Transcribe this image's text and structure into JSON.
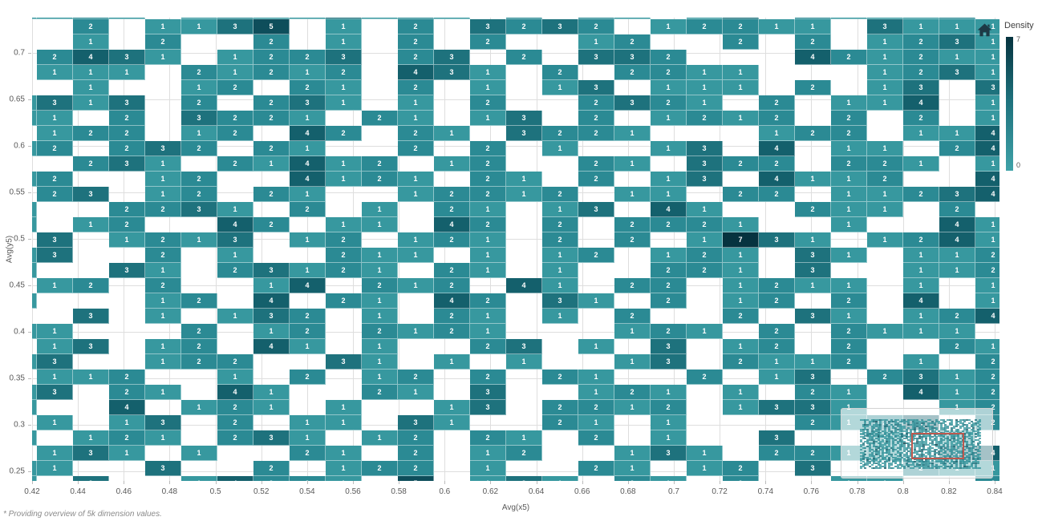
{
  "chart_data": {
    "type": "heatmap",
    "title": "",
    "xlabel": "Avg(x5)",
    "ylabel": "Avg(y5)",
    "x_range": [
      0.42,
      0.84
    ],
    "y_range": [
      0.25,
      0.7
    ],
    "x_ticks": [
      "0.42",
      "0.44",
      "0.46",
      "0.48",
      "0.5",
      "0.52",
      "0.54",
      "0.56",
      "0.58",
      "0.6",
      "0.62",
      "0.64",
      "0.66",
      "0.68",
      "0.7",
      "0.72",
      "0.74",
      "0.76",
      "0.78",
      "0.8",
      "0.82",
      "0.84"
    ],
    "y_ticks": [
      "0.7",
      "0.65",
      "0.6",
      "0.55",
      "0.5",
      "0.45",
      "0.4",
      "0.35",
      "0.3",
      "0.25"
    ],
    "density_scale": {
      "min": 0,
      "max": 7
    },
    "grid_encoding": "Each string is one row of cells (top to bottom, edge rows/columns clipped in view); '.'=empty white cell, digits 1-7 = density value displayed in the cell",
    "cols": 28,
    "rows": [
      "1121.12113121.2.21.13.21112.",
      "..2.1135.1.2.3232.12211.3111",
      "..1.2..2.1.2.2..12..2.2.1231",
      ".2431.1223.23.2.332...421211",
      ".111.21212.431.2.2211...1231",
      "..1..12.21.2.1.13.111.2.13.3",
      "1313.2.231.1.2..2321.2.114.1",
      "11.2.3221.21.13.2.1212.2.2.1",
      ".122.12.42.21.3221...122.114",
      "12.232.21..2.2.1..13.4.11.24",
      "..231.21412.12..21.322.221.1",
      "12..12..4121.21.2.13.4112..4",
      ".23.12.21..12212.11.22.11234",
      "1..2231.2.1.21.13.41..211.2.",
      "1.12..42.11.42.2.2221..1..41",
      ".3.1213.12.121.2.2.1731.1241",
      "13..2.1..211.1.12.121.31.112",
      "1..31.23121.21.1..221.3..112",
      ".12.2..14.212.41.22.1211.1.1",
      "1...12.4.21.42.31.2.12.2.4.1",
      "..3.1.132.1.21.1.2..2.31.124",
      "11...2.12.2121...121.2.2111.",
      ".13.12.41.1..23.1.3.12.2..21",
      "13..122..31.1.1..13.2112.1.2",
      ".112..1.2.12.2.21..2.13.2312",
      "13.21.41..21.3..121.1.21.412",
      "1..4.121.1..13.2212.1331..12",
      ".1.13.2.11.31..21.1...2124.2",
      "1.121.231.12.21.2.1..3..1.1.",
      ".131.1..21.2.12..131.2211.34",
      "11..3..2.122.1..21.12.3..211",
      "1.3..14221.5.131.21.2..11..2"
    ]
  },
  "legend": {
    "title": "Density",
    "max_label": "7",
    "min_label": "0"
  },
  "footnote": "* Providing overview of 5k dimension values.",
  "icons": {
    "home-icon": "⌂"
  },
  "colors": {
    "d1": "#37989F",
    "d2": "#2B8A94",
    "d3": "#1E727D",
    "d4": "#14606C",
    "d5": "#0E4E5B",
    "d6": "#0A414E",
    "d7": "#06333F",
    "legend_top": "#06333F",
    "legend_bottom": "#3FA2A8",
    "gridline": "#DEDEDE",
    "navigator_viewport": "#BC584E",
    "home_icon": "#1D3A46",
    "cell_text": "#FFFFFF"
  }
}
